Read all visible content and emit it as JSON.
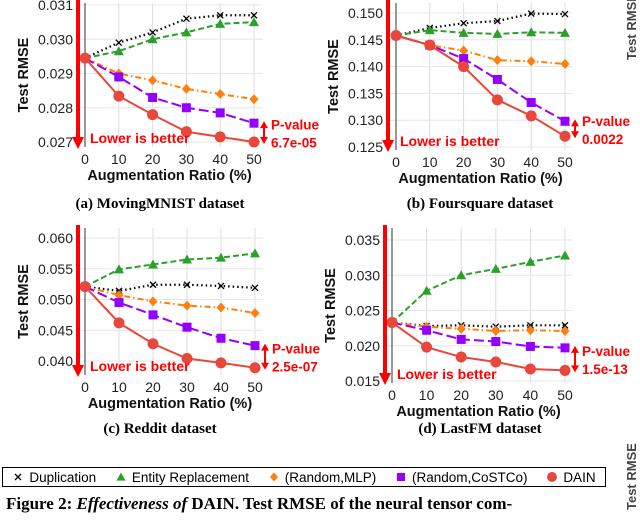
{
  "legend": [
    {
      "name": "Duplication",
      "marker": "x",
      "color": "#000000",
      "dash": "dotted"
    },
    {
      "name": "Entity Replacement",
      "marker": "triangle",
      "color": "#2ca02c",
      "dash": "dashed"
    },
    {
      "name": "(Random,MLP)",
      "marker": "diamond",
      "color": "#ff7f0e",
      "dash": "dashdot"
    },
    {
      "name": "(Random,CoSTCo)",
      "marker": "square",
      "color": "#9400ff",
      "dash": "longdash"
    },
    {
      "name": "DAIN",
      "marker": "circle",
      "color": "#e8473c",
      "dash": "solid"
    }
  ],
  "annotation_color": "#ff0000",
  "figure_caption": {
    "label": "Figure 2:",
    "italic": "Effectiveness of",
    "rest": "DAIN. Test RMSE of the neural tensor com-"
  },
  "side_text": "Test RMSE",
  "chart_data": [
    {
      "type": "line",
      "caption": "(a) MovingMNIST dataset",
      "xlabel": "Augmentation Ratio (%)",
      "ylabel": "Test RMSE",
      "x": [
        0,
        10,
        20,
        30,
        40,
        50
      ],
      "yticks": [
        "0.027",
        "0.028",
        "0.029",
        "0.030",
        "0.031"
      ],
      "grid": true,
      "annotation": "Lower is better",
      "pvalue_label": "P-value",
      "pvalue": "6.7e-05",
      "series": [
        {
          "name": "Duplication",
          "values": [
            0.02945,
            0.0299,
            0.0302,
            0.0306,
            0.0307,
            0.0307
          ]
        },
        {
          "name": "Entity Replacement",
          "values": [
            0.02945,
            0.02965,
            0.03,
            0.0302,
            0.03045,
            0.0305
          ]
        },
        {
          "name": "(Random,MLP)",
          "values": [
            0.02945,
            0.029,
            0.0288,
            0.02855,
            0.0284,
            0.02825
          ]
        },
        {
          "name": "(Random,CoSTCo)",
          "values": [
            0.02945,
            0.0289,
            0.0283,
            0.028,
            0.02785,
            0.02755
          ]
        },
        {
          "name": "DAIN",
          "values": [
            0.02945,
            0.02834,
            0.0278,
            0.0273,
            0.02715,
            0.027
          ]
        }
      ]
    },
    {
      "type": "line",
      "caption": "(b) Foursquare dataset",
      "xlabel": "Augmentation Ratio (%)",
      "ylabel": "Test RMSE",
      "x": [
        0,
        10,
        20,
        30,
        40,
        50
      ],
      "yticks": [
        "0.125",
        "0.130",
        "0.135",
        "0.140",
        "0.145",
        "0.150"
      ],
      "grid": true,
      "annotation": "Lower is better",
      "pvalue_label": "P-value",
      "pvalue": "0.0022",
      "series": [
        {
          "name": "Duplication",
          "values": [
            0.1458,
            0.1472,
            0.1481,
            0.1485,
            0.1499,
            0.1498
          ]
        },
        {
          "name": "Entity Replacement",
          "values": [
            0.1458,
            0.1468,
            0.1463,
            0.1461,
            0.1464,
            0.1463
          ]
        },
        {
          "name": "(Random,MLP)",
          "values": [
            0.1458,
            0.144,
            0.143,
            0.1412,
            0.141,
            0.1405
          ]
        },
        {
          "name": "(Random,CoSTCo)",
          "values": [
            0.1458,
            0.144,
            0.1415,
            0.1376,
            0.1333,
            0.1298
          ]
        },
        {
          "name": "DAIN",
          "values": [
            0.1458,
            0.144,
            0.14,
            0.1338,
            0.1308,
            0.127
          ]
        }
      ]
    },
    {
      "type": "line",
      "caption": "(c) Reddit dataset",
      "xlabel": "Augmentation Ratio (%)",
      "ylabel": "Test RMSE",
      "x": [
        0,
        10,
        20,
        30,
        40,
        50
      ],
      "yticks": [
        "0.040",
        "0.045",
        "0.050",
        "0.055",
        "0.060"
      ],
      "grid": true,
      "annotation": "Lower is better",
      "pvalue_label": "P-value",
      "pvalue": "2.5e-07",
      "series": [
        {
          "name": "Duplication",
          "values": [
            0.0521,
            0.0514,
            0.0524,
            0.0524,
            0.0522,
            0.0519
          ]
        },
        {
          "name": "Entity Replacement",
          "values": [
            0.0521,
            0.0549,
            0.0557,
            0.0565,
            0.0568,
            0.0575
          ]
        },
        {
          "name": "(Random,MLP)",
          "values": [
            0.0521,
            0.0507,
            0.0497,
            0.049,
            0.0487,
            0.0478
          ]
        },
        {
          "name": "(Random,CoSTCo)",
          "values": [
            0.0521,
            0.0495,
            0.0475,
            0.0455,
            0.0437,
            0.0425
          ]
        },
        {
          "name": "DAIN",
          "values": [
            0.0521,
            0.0462,
            0.0428,
            0.0404,
            0.0397,
            0.0389
          ]
        }
      ]
    },
    {
      "type": "line",
      "caption": "(d) LastFM dataset",
      "xlabel": "Augmentation Ratio (%)",
      "ylabel": "Test RMSE",
      "x": [
        0,
        10,
        20,
        30,
        40,
        50
      ],
      "yticks": [
        "0.015",
        "0.020",
        "0.025",
        "0.030",
        "0.035"
      ],
      "grid": true,
      "annotation": "Lower is better",
      "pvalue_label": "P-value",
      "pvalue": "1.5e-13",
      "series": [
        {
          "name": "Duplication",
          "values": [
            0.0233,
            0.0228,
            0.0229,
            0.0227,
            0.0229,
            0.0229
          ]
        },
        {
          "name": "Entity Replacement",
          "values": [
            0.0233,
            0.0278,
            0.03,
            0.0309,
            0.0319,
            0.0328
          ]
        },
        {
          "name": "(Random,MLP)",
          "values": [
            0.0233,
            0.0227,
            0.0224,
            0.0221,
            0.0222,
            0.0221
          ]
        },
        {
          "name": "(Random,CoSTCo)",
          "values": [
            0.0233,
            0.0222,
            0.0209,
            0.0206,
            0.0199,
            0.0197
          ]
        },
        {
          "name": "DAIN",
          "values": [
            0.0233,
            0.0198,
            0.0184,
            0.0177,
            0.0167,
            0.0165
          ]
        }
      ]
    }
  ]
}
